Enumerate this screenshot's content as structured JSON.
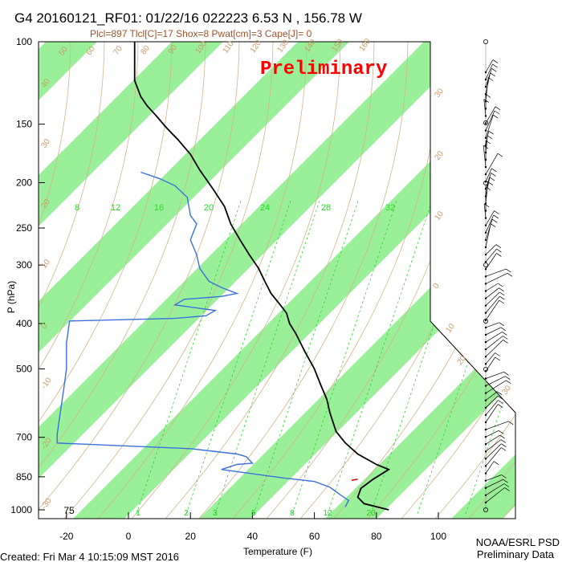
{
  "title": "G4 20160121_RF01: 01/22/16 022223    6.53 N , 156.78 W",
  "subtitle": "Plcl=897 Tlcl[C]=17 Shox=8 Pwat[cm]=3 Cape[J]= 0",
  "watermark": "Preliminary",
  "footer": {
    "created": "Created: Fri Mar  4 10:15:09 MST 2016",
    "source_line1": "NOAA/ESRL PSD",
    "source_line2": "Preliminary Data"
  },
  "colors": {
    "band": "#99f099",
    "temperature": "#000000",
    "dewpoint": "#3a6fdc",
    "dry_adiabat": "#d2b48c",
    "mixing_ratio": "#22cc22",
    "annotation": "#a0522d"
  },
  "chart_data": {
    "type": "line",
    "title": "G4 20160121_RF01: 01/22/16 022223    6.53 N , 156.78 W",
    "xlabel": "Temperature (F)",
    "ylabel": "P (hPa)",
    "xlim": [
      -28,
      115
    ],
    "ylim": [
      1030,
      100
    ],
    "y_scale": "log",
    "x_ticks": [
      "-20",
      "0",
      "20",
      "40",
      "60",
      "80",
      "100"
    ],
    "y_ticks": [
      "100",
      "150",
      "200",
      "250",
      "300",
      "400",
      "500",
      "700",
      "850",
      "1000"
    ],
    "mixing_ratio_labels_top": [
      "8",
      "12",
      "16",
      "20",
      "24",
      "28",
      "32"
    ],
    "mixing_ratio_labels_bottom": [
      "1",
      "2",
      "3",
      "5",
      "8",
      "12",
      "20"
    ],
    "bottom_label": "75",
    "adiabat_labels_top": [
      "50",
      "60",
      "70",
      "80",
      "90",
      "100",
      "110",
      "120",
      "130",
      "140",
      "150",
      "160"
    ],
    "adiabat_labels_left": [
      "40",
      "30",
      "20",
      "10",
      "0",
      "-10",
      "-20",
      "-30"
    ],
    "adiabat_labels_right": [
      "30",
      "20",
      "10",
      "0",
      "10",
      "20",
      "30"
    ],
    "series": [
      {
        "name": "",
        "points": [
          [
            84,
            1000
          ],
          [
            76,
            970
          ],
          [
            74,
            940
          ],
          [
            75,
            900
          ],
          [
            79,
            860
          ],
          [
            84,
            820
          ],
          [
            80,
            800
          ],
          [
            74,
            760
          ],
          [
            70,
            720
          ],
          [
            67,
            680
          ],
          [
            65,
            620
          ],
          [
            64,
            580
          ],
          [
            62,
            540
          ],
          [
            60,
            500
          ],
          [
            57,
            460
          ],
          [
            54,
            420
          ],
          [
            52,
            400
          ],
          [
            51,
            380
          ],
          [
            49,
            365
          ],
          [
            46,
            345
          ],
          [
            44,
            325
          ],
          [
            42,
            305
          ],
          [
            39,
            285
          ],
          [
            36,
            265
          ],
          [
            33,
            245
          ],
          [
            31,
            225
          ],
          [
            27,
            205
          ],
          [
            23,
            188
          ],
          [
            20,
            174
          ],
          [
            16,
            162
          ],
          [
            12,
            152
          ],
          [
            9,
            144
          ],
          [
            6,
            137
          ],
          [
            4,
            131
          ],
          [
            3,
            126
          ],
          [
            2,
            121
          ],
          [
            2,
            117
          ],
          [
            2,
            113
          ],
          [
            2,
            110
          ],
          [
            2,
            107
          ],
          [
            2,
            104
          ],
          [
            2,
            101
          ],
          [
            2,
            100
          ]
        ]
      },
      {
        "name": "",
        "points": [
          [
            70,
            985
          ],
          [
            71,
            955
          ],
          [
            68,
            925
          ],
          [
            65,
            895
          ],
          [
            60,
            870
          ],
          [
            50,
            855
          ],
          [
            30,
            820
          ],
          [
            35,
            800
          ],
          [
            40,
            795
          ],
          [
            38,
            770
          ],
          [
            35,
            760
          ],
          [
            20,
            740
          ],
          [
            -23,
            720
          ],
          [
            -23,
            690
          ],
          [
            -22,
            620
          ],
          [
            -21,
            560
          ],
          [
            -20,
            500
          ],
          [
            -20,
            440
          ],
          [
            -19,
            395
          ],
          [
            15,
            390
          ],
          [
            25,
            385
          ],
          [
            28,
            375
          ],
          [
            15,
            365
          ],
          [
            18,
            355
          ],
          [
            30,
            350
          ],
          [
            35,
            345
          ],
          [
            30,
            335
          ],
          [
            26,
            325
          ],
          [
            23,
            305
          ],
          [
            22,
            285
          ],
          [
            20,
            265
          ],
          [
            22,
            245
          ],
          [
            20,
            235
          ],
          [
            19,
            215
          ],
          [
            15,
            203
          ],
          [
            10,
            196
          ],
          [
            4,
            190
          ]
        ]
      }
    ]
  },
  "wind_barbs": {
    "count": 60
  }
}
